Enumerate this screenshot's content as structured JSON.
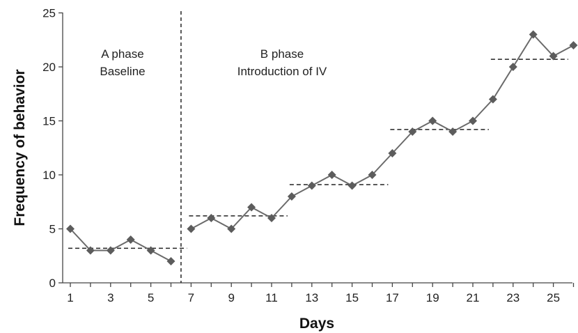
{
  "chart_data": {
    "type": "line",
    "title": "",
    "xlabel": "Days",
    "ylabel": "Frequency of behavior",
    "xlim": [
      1,
      26
    ],
    "ylim": [
      0,
      25
    ],
    "x_ticks": [
      1,
      3,
      5,
      7,
      9,
      11,
      13,
      15,
      17,
      19,
      21,
      23,
      25
    ],
    "x_tick_labels": [
      "1",
      "3",
      "5",
      "7",
      "9",
      "11",
      "13",
      "15",
      "17",
      "19",
      "21",
      "23",
      "25"
    ],
    "y_ticks": [
      0,
      5,
      10,
      15,
      20,
      25
    ],
    "y_tick_labels": [
      "0",
      "5",
      "10",
      "15",
      "20",
      "25"
    ],
    "grid": false,
    "marker": "diamond",
    "line_color": "#6a6a6a",
    "marker_color": "#5c5c5c",
    "series": [
      {
        "x": [
          1,
          2,
          3,
          4,
          5,
          6
        ],
        "y": [
          5,
          3,
          3,
          4,
          3,
          2
        ]
      },
      {
        "x": [
          7,
          8,
          9,
          10,
          11,
          12,
          13,
          14,
          15,
          16,
          17,
          18,
          19,
          20,
          21,
          22,
          23,
          24,
          25,
          26
        ],
        "y": [
          5,
          6,
          5,
          7,
          6,
          8,
          9,
          10,
          9,
          10,
          12,
          14,
          15,
          14,
          15,
          17,
          20,
          23,
          21,
          22
        ]
      }
    ],
    "phase_line_x": 6.5,
    "phases": [
      {
        "label_line1": "A phase",
        "label_line2": "Baseline",
        "x_center": 3.7
      },
      {
        "label_line1": "B phase",
        "label_line2": "Introduction of IV",
        "x_center": 10.7
      }
    ],
    "mean_lines": [
      {
        "x_start": 1,
        "x_end": 7,
        "y": 3.2
      },
      {
        "x_start": 7,
        "x_end": 12,
        "y": 6.2
      },
      {
        "x_start": 12,
        "x_end": 17,
        "y": 9.1
      },
      {
        "x_start": 17,
        "x_end": 22,
        "y": 14.2
      },
      {
        "x_start": 22,
        "x_end": 27,
        "y": 20.7
      }
    ]
  }
}
